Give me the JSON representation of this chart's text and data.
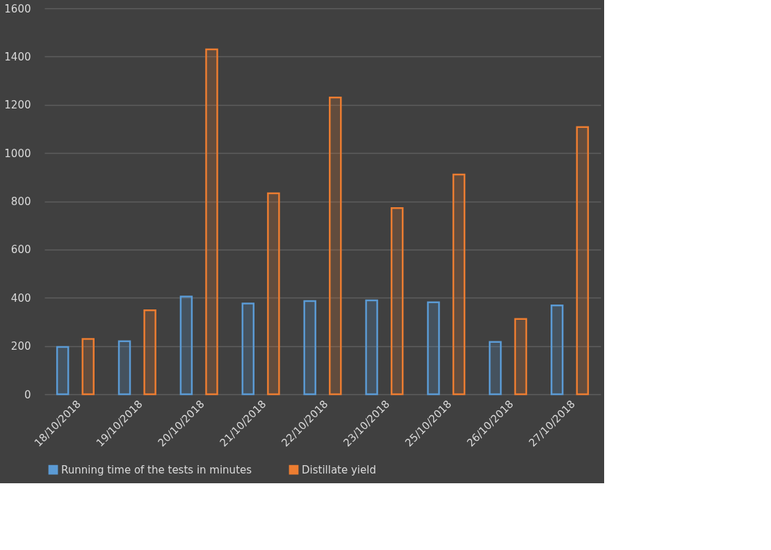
{
  "chart_data": {
    "type": "bar",
    "categories": [
      "18/10/2018",
      "19/10/2018",
      "20/10/2018",
      "21/10/2018",
      "22/10/2018",
      "23/10/2018",
      "25/10/2018",
      "26/10/2018",
      "27/10/2018"
    ],
    "series": [
      {
        "name": "Running time of the tests in minutes",
        "color": "#5b9bd5",
        "values": [
          196,
          220,
          405,
          376,
          386,
          389,
          381,
          217,
          368
        ]
      },
      {
        "name": "Distillate yield",
        "color": "#ed7d31",
        "values": [
          229,
          348,
          1430,
          833,
          1230,
          772,
          911,
          312,
          1108
        ]
      }
    ],
    "ylim": [
      0,
      1600
    ],
    "yticks": [
      0,
      200,
      400,
      600,
      800,
      1000,
      1200,
      1400,
      1600
    ],
    "grid": "y",
    "legend": "bottom"
  }
}
